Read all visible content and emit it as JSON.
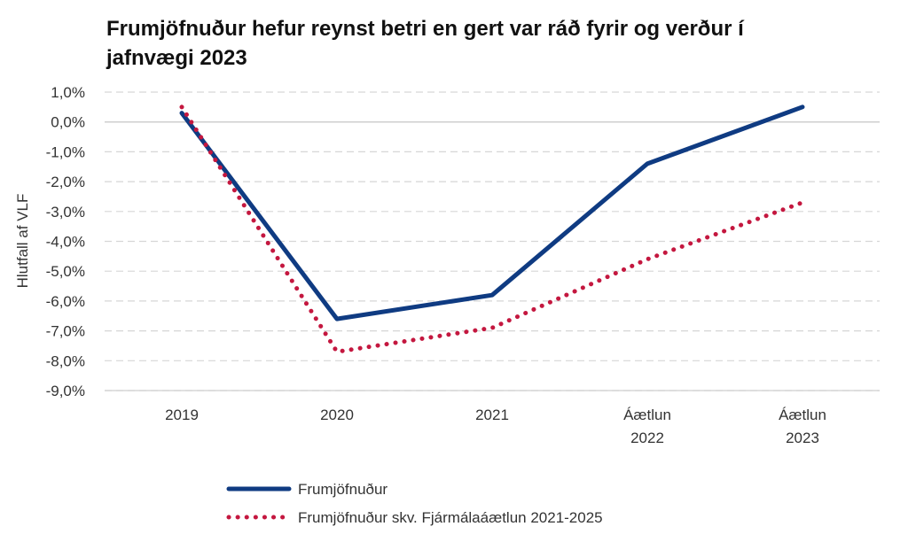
{
  "title": "Frumjöfnuður hefur reynst betri en gert var ráð fyrir og verður í jafnvægi 2023",
  "chart_data": {
    "type": "line",
    "title": "Frumjöfnuður hefur reynst betri en gert var ráð fyrir og verður í jafnvægi 2023",
    "ylabel": "Hlutfall af VLF",
    "xlabel": "",
    "categories": [
      [
        "2019"
      ],
      [
        "2020"
      ],
      [
        "2021"
      ],
      [
        "Áætlun",
        "2022"
      ],
      [
        "Áætlun",
        "2023"
      ]
    ],
    "ylim": [
      -9.0,
      1.0
    ],
    "yticks": [
      1.0,
      0.0,
      -1.0,
      -2.0,
      -3.0,
      -4.0,
      -5.0,
      -6.0,
      -7.0,
      -8.0,
      -9.0
    ],
    "ytick_labels": [
      "1,0%",
      "0,0%",
      "-1,0%",
      "-2,0%",
      "-3,0%",
      "-4,0%",
      "-5,0%",
      "-6,0%",
      "-7,0%",
      "-8,0%",
      "-9,0%"
    ],
    "grid": true,
    "legend_position": "bottom",
    "series": [
      {
        "name": "Frumjöfnuður",
        "values": [
          0.3,
          -6.6,
          -5.8,
          -1.4,
          0.5
        ],
        "color": "#0f3b82",
        "style": "solid"
      },
      {
        "name": "Frumjöfnuður skv. Fjármálaáætlun 2021-2025",
        "values": [
          0.5,
          -7.7,
          -6.9,
          -4.6,
          -2.7
        ],
        "color": "#c4173f",
        "style": "dotted"
      }
    ]
  }
}
